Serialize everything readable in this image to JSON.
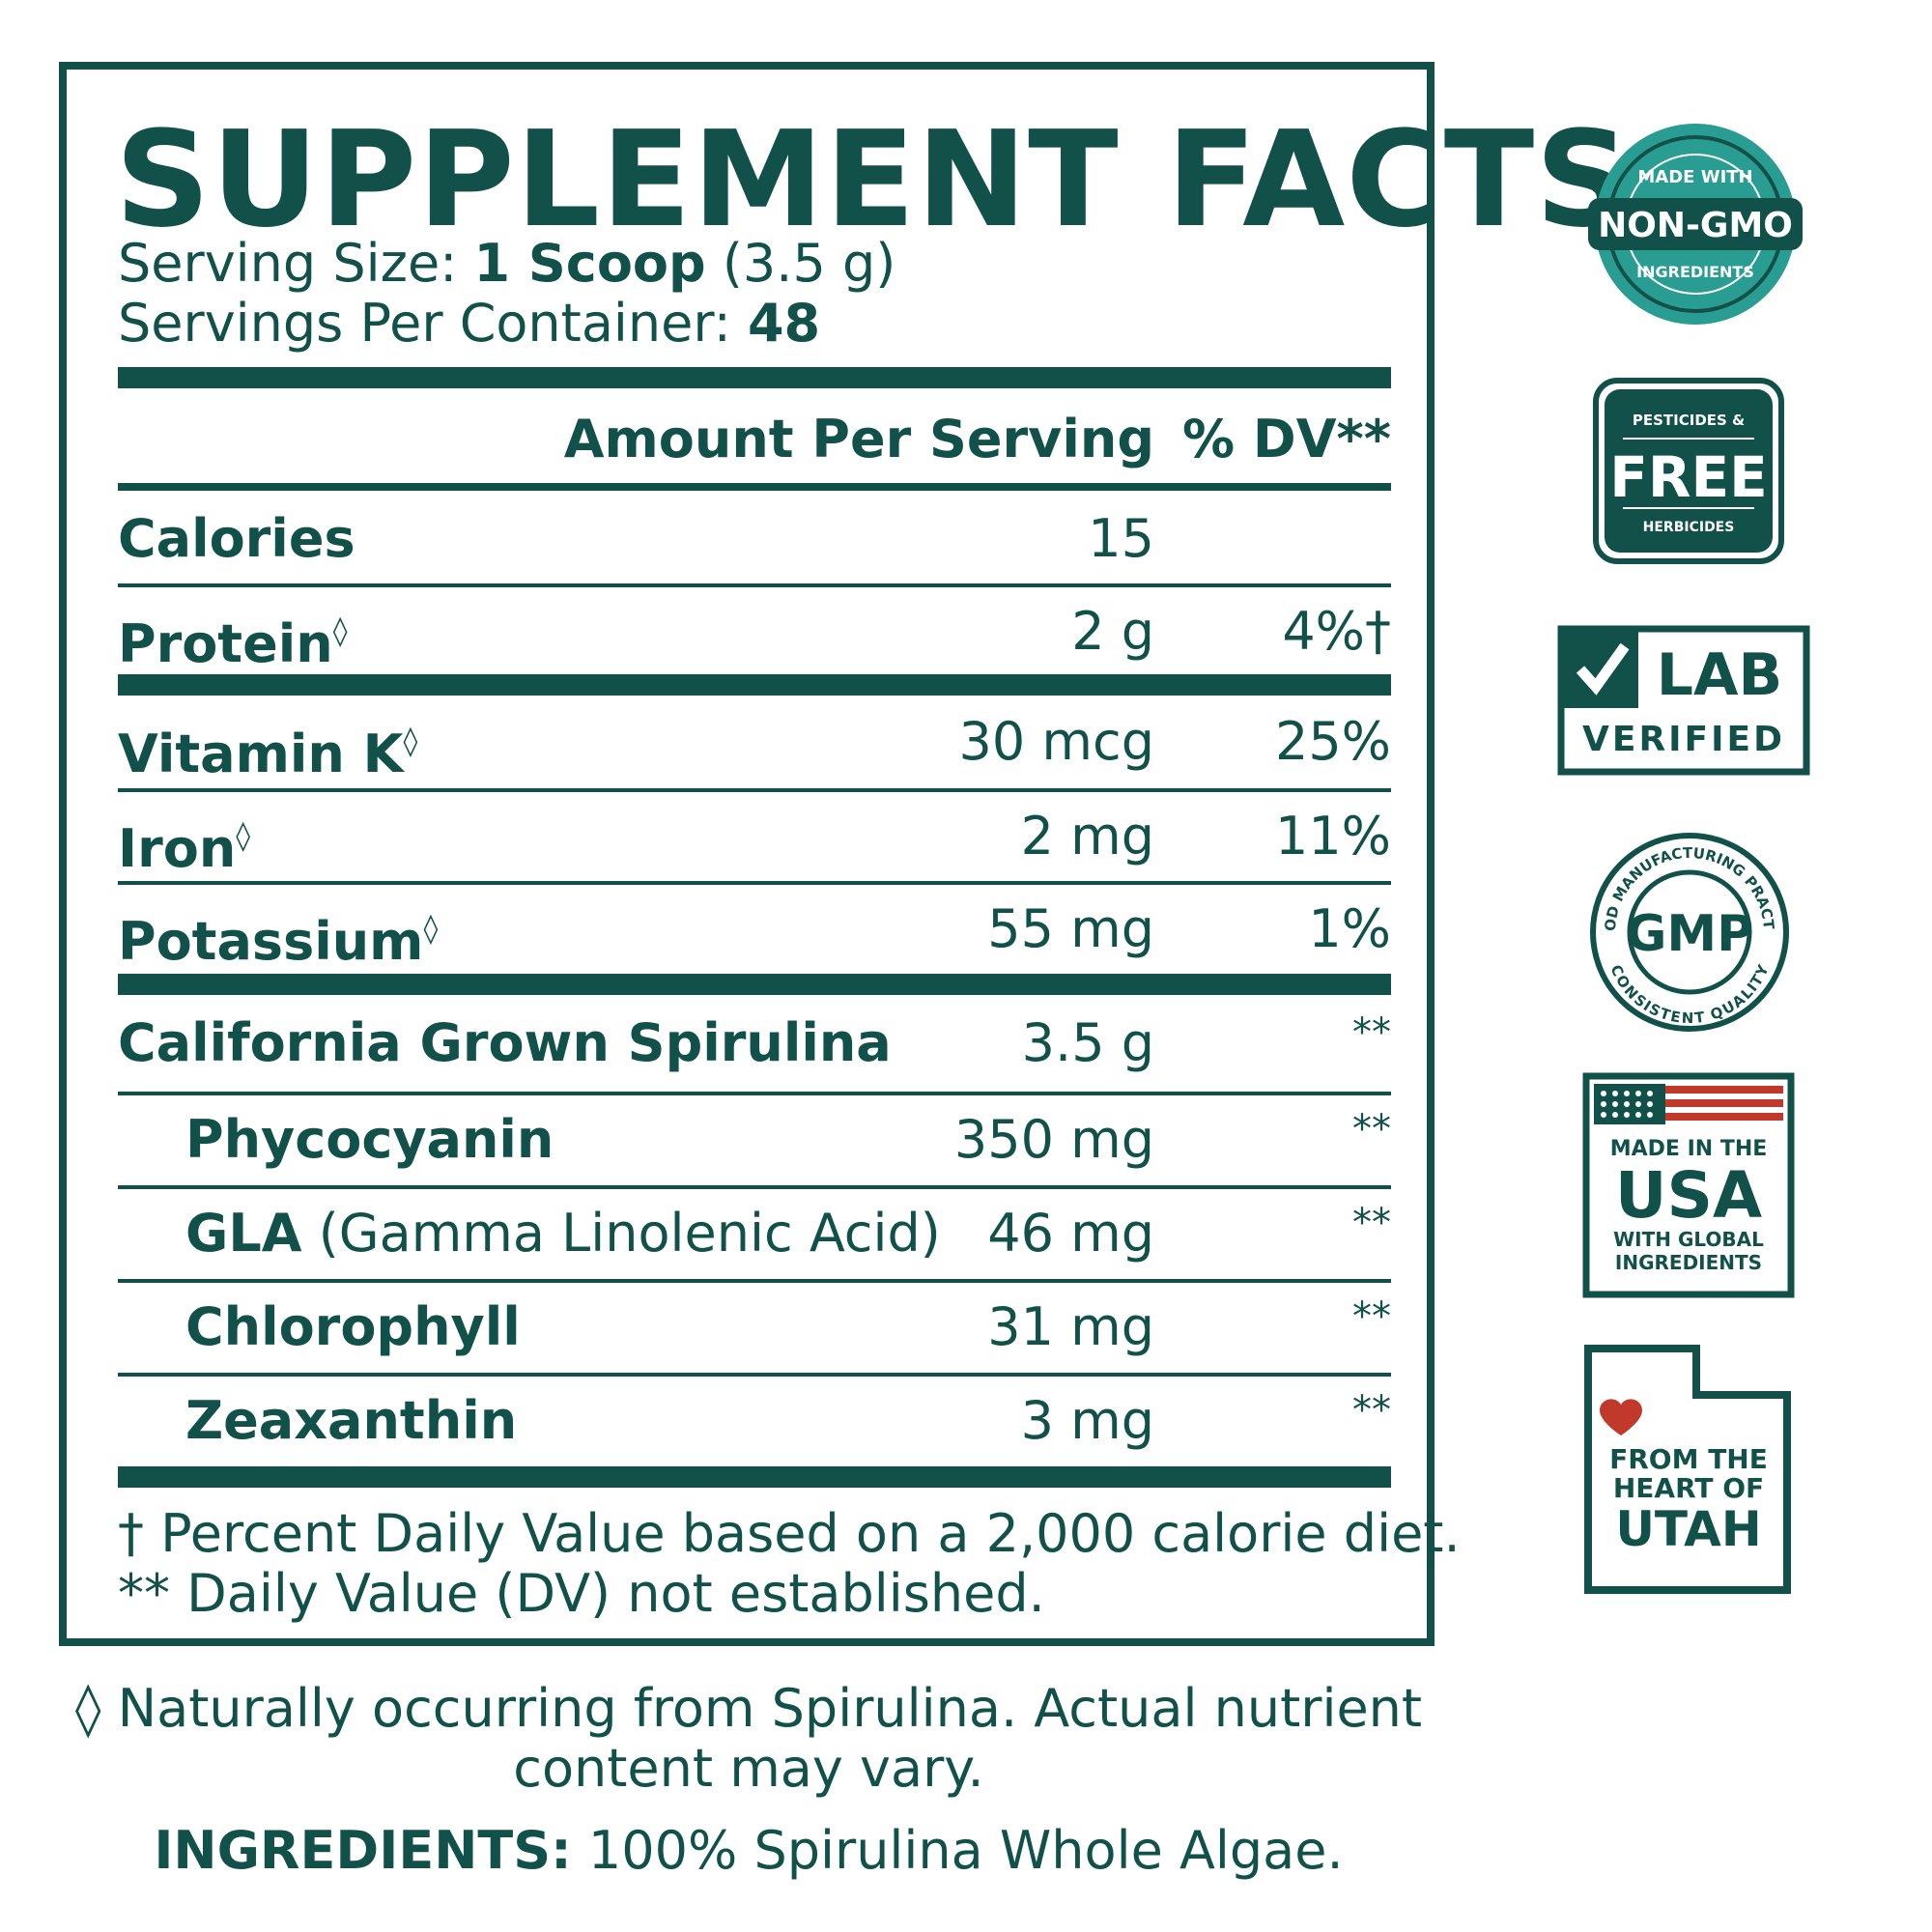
{
  "facts": {
    "title": "SUPPLEMENT FACTS",
    "serving_size_label": "Serving Size: ",
    "serving_size_value": "1 Scoop",
    "serving_size_grams": " (3.5 g)",
    "servings_label": "Servings Per Container: ",
    "servings_value": "48",
    "header_amount": "Amount Per Serving",
    "header_dv": "% DV**",
    "rows": [
      {
        "name": "Calories",
        "amount": "15",
        "dv": ""
      },
      {
        "name": "Protein",
        "amount": "2 g",
        "dv": "4%†"
      },
      {
        "name": "Vitamin K",
        "amount": "30 mcg",
        "dv": "25%"
      },
      {
        "name": "Iron",
        "amount": "2 mg",
        "dv": "11%"
      },
      {
        "name": "Potassium",
        "amount": "55 mg",
        "dv": "1%"
      },
      {
        "name": "California Grown Spirulina",
        "amount": "3.5 g",
        "dv": "**"
      },
      {
        "name": "Phycocyanin",
        "amount": "350 mg",
        "dv": "**"
      },
      {
        "name": "GLA",
        "name_extra": " (Gamma Linolenic Acid)",
        "amount": "46 mg",
        "dv": "**"
      },
      {
        "name": "Chlorophyll",
        "amount": "31 mg",
        "dv": "**"
      },
      {
        "name": "Zeaxanthin",
        "amount": "3 mg",
        "dv": "**"
      }
    ],
    "diamond": "◊",
    "footnote_1": "† Percent Daily Value based on a 2,000 calorie diet.",
    "footnote_2": "** Daily Value (DV) not established."
  },
  "notes": {
    "natural_1": "◊ Naturally occurring from Spirulina. Actual nutrient",
    "natural_2": "content may vary.",
    "ingredients_label": "INGREDIENTS:",
    "ingredients_value": " 100% Spirulina Whole Algae."
  },
  "badges": {
    "nongmo": {
      "top": "MADE WITH",
      "main": "NON-GMO",
      "bottom": "INGREDIENTS"
    },
    "pesticide": {
      "top": "PESTICIDES &",
      "main": "FREE",
      "bottom": "HERBICIDES"
    },
    "lab": {
      "main": "LAB",
      "bottom": "VERIFIED"
    },
    "gmp": {
      "main": "GMP",
      "top": "GOOD MANUFACTURING PRACTICE",
      "bottom": "CONSISTENT QUALITY"
    },
    "usa": {
      "top": "MADE IN THE",
      "main": "USA",
      "bottom_1": "WITH GLOBAL",
      "bottom_2": "INGREDIENTS"
    },
    "utah": {
      "line_1": "FROM THE",
      "line_2": "HEART OF",
      "line_3": "UTAH"
    }
  },
  "colors": {
    "teal": "#11514a",
    "badge_teal": "#2a9d92",
    "red": "#c0392b"
  }
}
